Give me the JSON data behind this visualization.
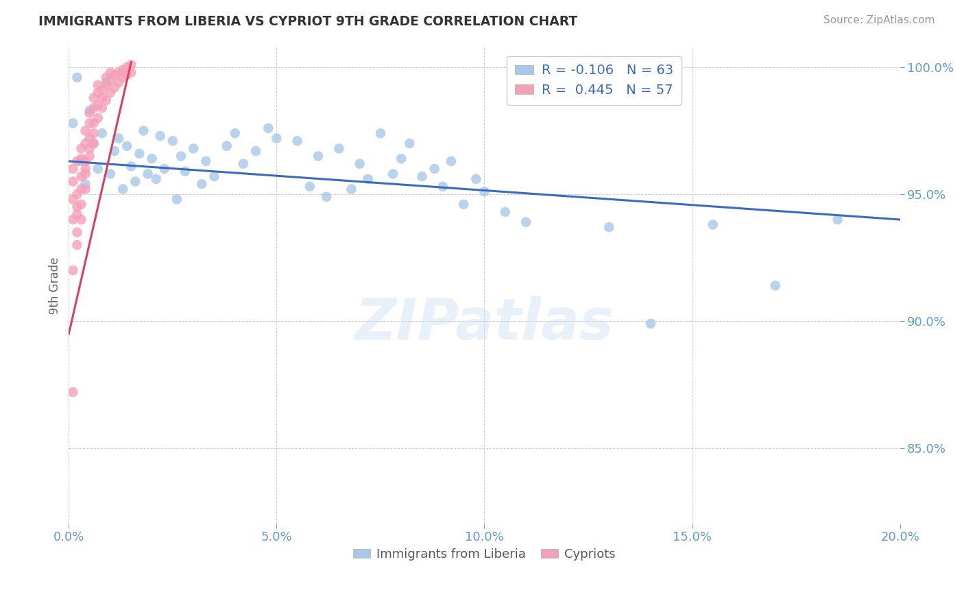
{
  "title": "IMMIGRANTS FROM LIBERIA VS CYPRIOT 9TH GRADE CORRELATION CHART",
  "source_text": "Source: ZipAtlas.com",
  "ylabel": "9th Grade",
  "xlim": [
    0.0,
    0.2
  ],
  "ylim": [
    0.82,
    1.008
  ],
  "yticks": [
    0.85,
    0.9,
    0.95,
    1.0
  ],
  "ytick_labels": [
    "85.0%",
    "90.0%",
    "95.0%",
    "100.0%"
  ],
  "xticks": [
    0.0,
    0.05,
    0.1,
    0.15,
    0.2
  ],
  "xtick_labels": [
    "0.0%",
    "5.0%",
    "10.0%",
    "15.0%",
    "20.0%"
  ],
  "liberia_color": "#a8c8e8",
  "cypriot_color": "#f4a0b8",
  "liberia_line_color": "#3a6bbf",
  "cypriot_line_color": "#d94060",
  "R_liberia": -0.106,
  "N_liberia": 63,
  "R_cypriot": 0.445,
  "N_cypriot": 57,
  "watermark": "ZIPatlas",
  "grid_color": "#c8c8c8",
  "title_color": "#333333",
  "axis_color": "#5b9bd5",
  "liberia_x": [
    0.001,
    0.002,
    0.003,
    0.004,
    0.005,
    0.006,
    0.007,
    0.008,
    0.009,
    0.01,
    0.011,
    0.012,
    0.013,
    0.014,
    0.015,
    0.016,
    0.017,
    0.018,
    0.019,
    0.02,
    0.021,
    0.022,
    0.023,
    0.025,
    0.026,
    0.027,
    0.028,
    0.03,
    0.032,
    0.033,
    0.035,
    0.038,
    0.04,
    0.042,
    0.045,
    0.048,
    0.05,
    0.055,
    0.058,
    0.06,
    0.062,
    0.065,
    0.068,
    0.07,
    0.072,
    0.075,
    0.078,
    0.08,
    0.082,
    0.085,
    0.088,
    0.09,
    0.092,
    0.095,
    0.098,
    0.1,
    0.105,
    0.11,
    0.13,
    0.14,
    0.155,
    0.17,
    0.185
  ],
  "liberia_y": [
    0.978,
    0.996,
    0.963,
    0.954,
    0.983,
    0.97,
    0.96,
    0.974,
    0.994,
    0.958,
    0.967,
    0.972,
    0.952,
    0.969,
    0.961,
    0.955,
    0.966,
    0.975,
    0.958,
    0.964,
    0.956,
    0.973,
    0.96,
    0.971,
    0.948,
    0.965,
    0.959,
    0.968,
    0.954,
    0.963,
    0.957,
    0.969,
    0.974,
    0.962,
    0.967,
    0.976,
    0.972,
    0.971,
    0.953,
    0.965,
    0.949,
    0.968,
    0.952,
    0.962,
    0.956,
    0.974,
    0.958,
    0.964,
    0.97,
    0.957,
    0.96,
    0.953,
    0.963,
    0.946,
    0.956,
    0.951,
    0.943,
    0.939,
    0.937,
    0.899,
    0.938,
    0.914,
    0.94
  ],
  "cypriot_x": [
    0.001,
    0.001,
    0.001,
    0.001,
    0.001,
    0.002,
    0.002,
    0.002,
    0.002,
    0.003,
    0.003,
    0.003,
    0.003,
    0.004,
    0.004,
    0.004,
    0.004,
    0.005,
    0.005,
    0.005,
    0.005,
    0.006,
    0.006,
    0.006,
    0.006,
    0.007,
    0.007,
    0.007,
    0.007,
    0.008,
    0.008,
    0.008,
    0.009,
    0.009,
    0.009,
    0.01,
    0.01,
    0.01,
    0.011,
    0.011,
    0.012,
    0.012,
    0.013,
    0.013,
    0.014,
    0.014,
    0.015,
    0.015,
    0.001,
    0.002,
    0.003,
    0.004,
    0.005,
    0.006,
    0.002,
    0.003,
    0.004
  ],
  "cypriot_y": [
    0.872,
    0.94,
    0.96,
    0.948,
    0.955,
    0.935,
    0.95,
    0.963,
    0.945,
    0.952,
    0.964,
    0.957,
    0.968,
    0.96,
    0.97,
    0.963,
    0.975,
    0.968,
    0.978,
    0.972,
    0.982,
    0.974,
    0.984,
    0.978,
    0.988,
    0.98,
    0.99,
    0.985,
    0.993,
    0.984,
    0.991,
    0.988,
    0.987,
    0.993,
    0.996,
    0.99,
    0.995,
    0.998,
    0.992,
    0.997,
    0.994,
    0.998,
    0.996,
    0.999,
    0.997,
    1.0,
    0.998,
    1.001,
    0.92,
    0.942,
    0.946,
    0.958,
    0.965,
    0.97,
    0.93,
    0.94,
    0.952
  ],
  "liberia_line_x": [
    0.0,
    0.2
  ],
  "liberia_line_y": [
    0.963,
    0.94
  ],
  "cypriot_line_x": [
    0.0,
    0.015
  ],
  "cypriot_line_y": [
    0.895,
    1.002
  ]
}
